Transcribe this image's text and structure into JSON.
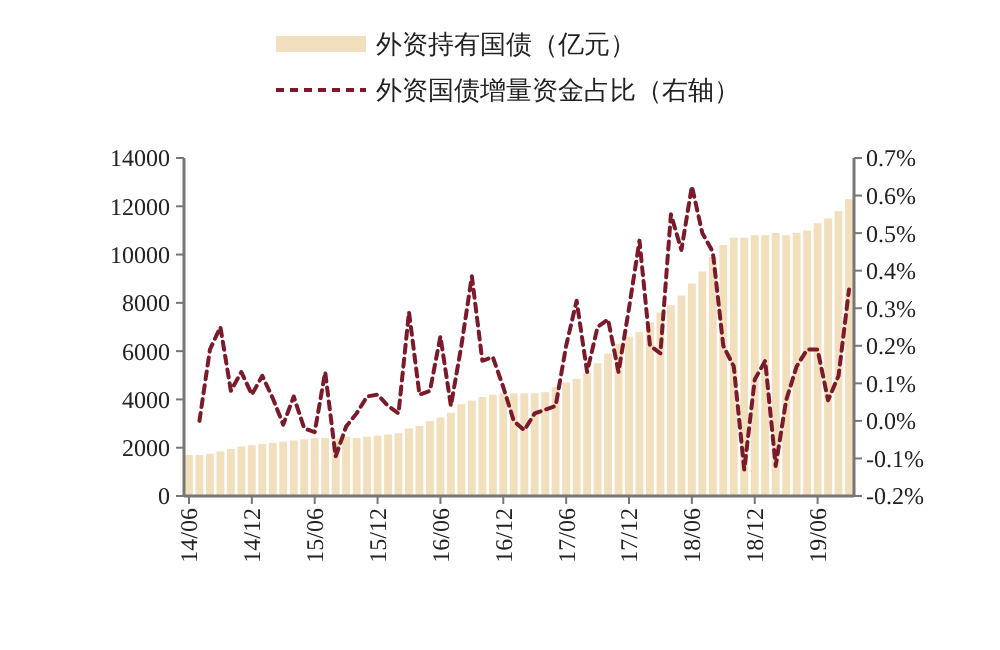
{
  "chart_data": {
    "type": "bar",
    "legend": "top",
    "categories": [
      "14/06",
      null,
      null,
      null,
      null,
      null,
      "14/12",
      null,
      null,
      null,
      null,
      null,
      "15/06",
      null,
      null,
      null,
      null,
      null,
      "15/12",
      null,
      null,
      null,
      null,
      null,
      "16/06",
      null,
      null,
      null,
      null,
      null,
      "16/12",
      null,
      null,
      null,
      null,
      null,
      "17/06",
      null,
      null,
      null,
      null,
      null,
      "17/12",
      null,
      null,
      null,
      null,
      null,
      "18/06",
      null,
      null,
      null,
      null,
      null,
      "18/12",
      null,
      null,
      null,
      null,
      null,
      "19/06",
      null,
      null,
      null
    ],
    "series": [
      {
        "name": "外资持有国债（亿元）",
        "color": "#f2dfbd",
        "values": [
          1700,
          1700,
          1750,
          1850,
          1950,
          2050,
          2100,
          2150,
          2200,
          2250,
          2300,
          2350,
          2400,
          2400,
          2400,
          2450,
          2400,
          2450,
          2500,
          2550,
          2600,
          2800,
          2900,
          3100,
          3250,
          3450,
          3800,
          3950,
          4100,
          4200,
          4250,
          4250,
          4250,
          4250,
          4300,
          4500,
          4700,
          4850,
          5100,
          5500,
          5900,
          6300,
          6600,
          6800,
          7200,
          7600,
          7900,
          8300,
          8800,
          9300,
          9900,
          10400,
          10700,
          10700,
          10800,
          10800,
          10900,
          10800,
          10900,
          11000,
          11300,
          11500,
          11800,
          12300
        ]
      },
      {
        "name": "外资国债增量资金占比（右轴）",
        "type": "line",
        "axis": "y2",
        "line_style": "dashed",
        "color": "#7a1a2a",
        "values": [
          null,
          0.0,
          0.19,
          0.25,
          0.08,
          0.13,
          0.07,
          0.12,
          0.06,
          -0.01,
          0.065,
          -0.02,
          -0.03,
          0.13,
          -0.095,
          -0.015,
          0.02,
          0.065,
          0.07,
          0.04,
          0.02,
          0.29,
          0.07,
          0.08,
          0.225,
          0.04,
          0.2,
          0.385,
          0.16,
          0.17,
          0.09,
          0.0,
          -0.025,
          0.02,
          0.03,
          0.04,
          0.2,
          0.32,
          0.13,
          0.25,
          0.27,
          0.13,
          0.3,
          0.48,
          0.2,
          0.18,
          0.55,
          0.455,
          0.625,
          0.5,
          0.45,
          0.2,
          0.145,
          -0.13,
          0.11,
          0.16,
          -0.12,
          0.055,
          0.145,
          0.19,
          0.19,
          0.055,
          0.12,
          0.35
        ]
      }
    ],
    "ylim": [
      0,
      14000
    ],
    "yticks": [
      0,
      2000,
      4000,
      6000,
      8000,
      10000,
      12000,
      14000
    ],
    "y2lim": [
      -0.2,
      0.7
    ],
    "y2ticks": [
      {
        "value": -0.2,
        "label": "-0.2%"
      },
      {
        "value": -0.1,
        "label": "-0.1%"
      },
      {
        "value": 0,
        "label": "0.0%"
      },
      {
        "value": 0.1,
        "label": "0.1%"
      },
      {
        "value": 0.2,
        "label": "0.2%"
      },
      {
        "value": 0.3,
        "label": "0.3%"
      },
      {
        "value": 0.4,
        "label": "0.4%"
      },
      {
        "value": 0.5,
        "label": "0.5%"
      },
      {
        "value": 0.6,
        "label": "0.6%"
      },
      {
        "value": 0.7,
        "label": "0.7%"
      }
    ]
  }
}
